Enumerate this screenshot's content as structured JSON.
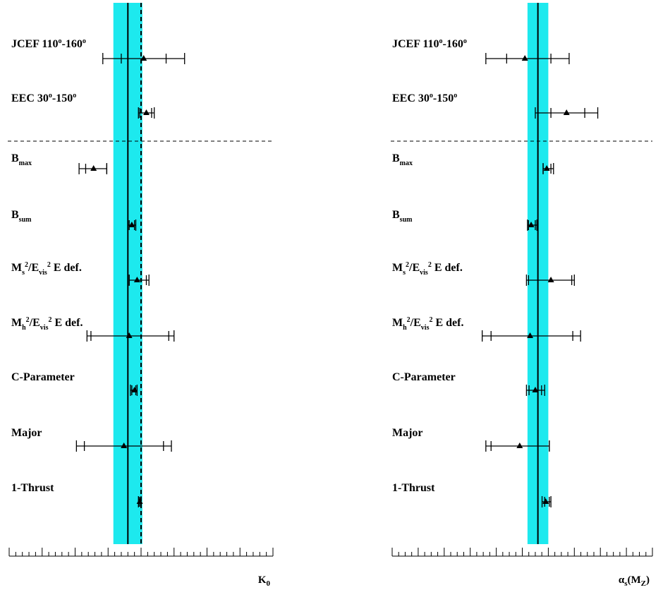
{
  "chart_data": [
    {
      "type": "scatter",
      "axis_label": "K₀",
      "xlim": [
        -1,
        1
      ],
      "ticks": [
        "-1",
        "-0.75",
        "-0.5",
        "-0.25",
        "0",
        "0.25",
        "0.5",
        "0.75",
        "1"
      ],
      "band": [
        -0.21,
        0.01
      ],
      "central_line": -0.1,
      "dashed_line": 0,
      "rows": [
        {
          "label": "JCEF 110°-160°",
          "value": 0.02,
          "inner": [
            -0.15,
            0.19
          ],
          "outer": [
            -0.29,
            0.33
          ]
        },
        {
          "label": "EEC 30°-150°",
          "value": 0.04,
          "inner": [
            -0.01,
            0.08
          ],
          "outer": [
            -0.02,
            0.1
          ]
        },
        {
          "label": "Bmax",
          "value": -0.36,
          "inner": [
            -0.42,
            -0.26
          ],
          "outer": [
            -0.47,
            -0.26
          ]
        },
        {
          "label": "Bsum",
          "value": -0.07,
          "inner": [
            -0.09,
            -0.05
          ],
          "outer": [
            -0.1,
            -0.04
          ]
        },
        {
          "label": "Ms²/Evis² E def.",
          "value": -0.03,
          "inner": [
            -0.09,
            0.04
          ],
          "outer": [
            -0.09,
            0.06
          ]
        },
        {
          "label": "Mh²/Evis² E def.",
          "value": -0.09,
          "inner": [
            -0.38,
            0.21
          ],
          "outer": [
            -0.41,
            0.25
          ]
        },
        {
          "label": "C-Parameter",
          "value": -0.05,
          "inner": [
            -0.07,
            -0.04
          ],
          "outer": [
            -0.08,
            -0.03
          ]
        },
        {
          "label": "Major",
          "value": -0.13,
          "inner": [
            -0.43,
            0.17
          ],
          "outer": [
            -0.49,
            0.23
          ]
        },
        {
          "label": "1-Thrust",
          "value": -0.01,
          "inner": [
            -0.015,
            -0.005
          ],
          "outer": [
            -0.02,
            0.0
          ]
        }
      ]
    },
    {
      "type": "scatter",
      "axis_label": "αs(MZ)",
      "xlim": [
        0.09,
        0.14
      ],
      "ticks": [
        "0.09",
        "0.095",
        "0.1",
        "0.105",
        "0.11",
        "0.115",
        "0.12",
        "0.125",
        "0.13",
        "0.135",
        "0.14"
      ],
      "band": [
        0.116,
        0.12
      ],
      "central_line": 0.118,
      "rows": [
        {
          "label": "JCEF 110°-160°",
          "value": 0.1155,
          "inner": [
            0.112,
            0.1205
          ],
          "outer": [
            0.108,
            0.124
          ]
        },
        {
          "label": "EEC 30°-150°",
          "value": 0.1235,
          "inner": [
            0.1205,
            0.127
          ],
          "outer": [
            0.1175,
            0.1295
          ]
        },
        {
          "label": "Bmax",
          "value": 0.1197,
          "inner": [
            0.119,
            0.1205
          ],
          "outer": [
            0.119,
            0.121
          ]
        },
        {
          "label": "Bsum",
          "value": 0.1167,
          "inner": [
            0.1162,
            0.1175
          ],
          "outer": [
            0.116,
            0.1178
          ]
        },
        {
          "label": "Ms²/Evis² E def.",
          "value": 0.1205,
          "inner": [
            0.1162,
            0.1245
          ],
          "outer": [
            0.1158,
            0.125
          ]
        },
        {
          "label": "Mh²/Evis² E def.",
          "value": 0.1165,
          "inner": [
            0.109,
            0.1247
          ],
          "outer": [
            0.1073,
            0.1262
          ]
        },
        {
          "label": "C-Parameter",
          "value": 0.1175,
          "inner": [
            0.1163,
            0.1187
          ],
          "outer": [
            0.1158,
            0.1193
          ]
        },
        {
          "label": "Major",
          "value": 0.1145,
          "inner": [
            0.109,
            0.1202
          ],
          "outer": [
            0.108,
            0.1202
          ]
        },
        {
          "label": "1-Thrust",
          "value": 0.1195,
          "inner": [
            0.1193,
            0.1202
          ],
          "outer": [
            0.1188,
            0.1205
          ]
        }
      ]
    }
  ],
  "colors": {
    "band": "#1de9ee",
    "ink": "#000000"
  }
}
